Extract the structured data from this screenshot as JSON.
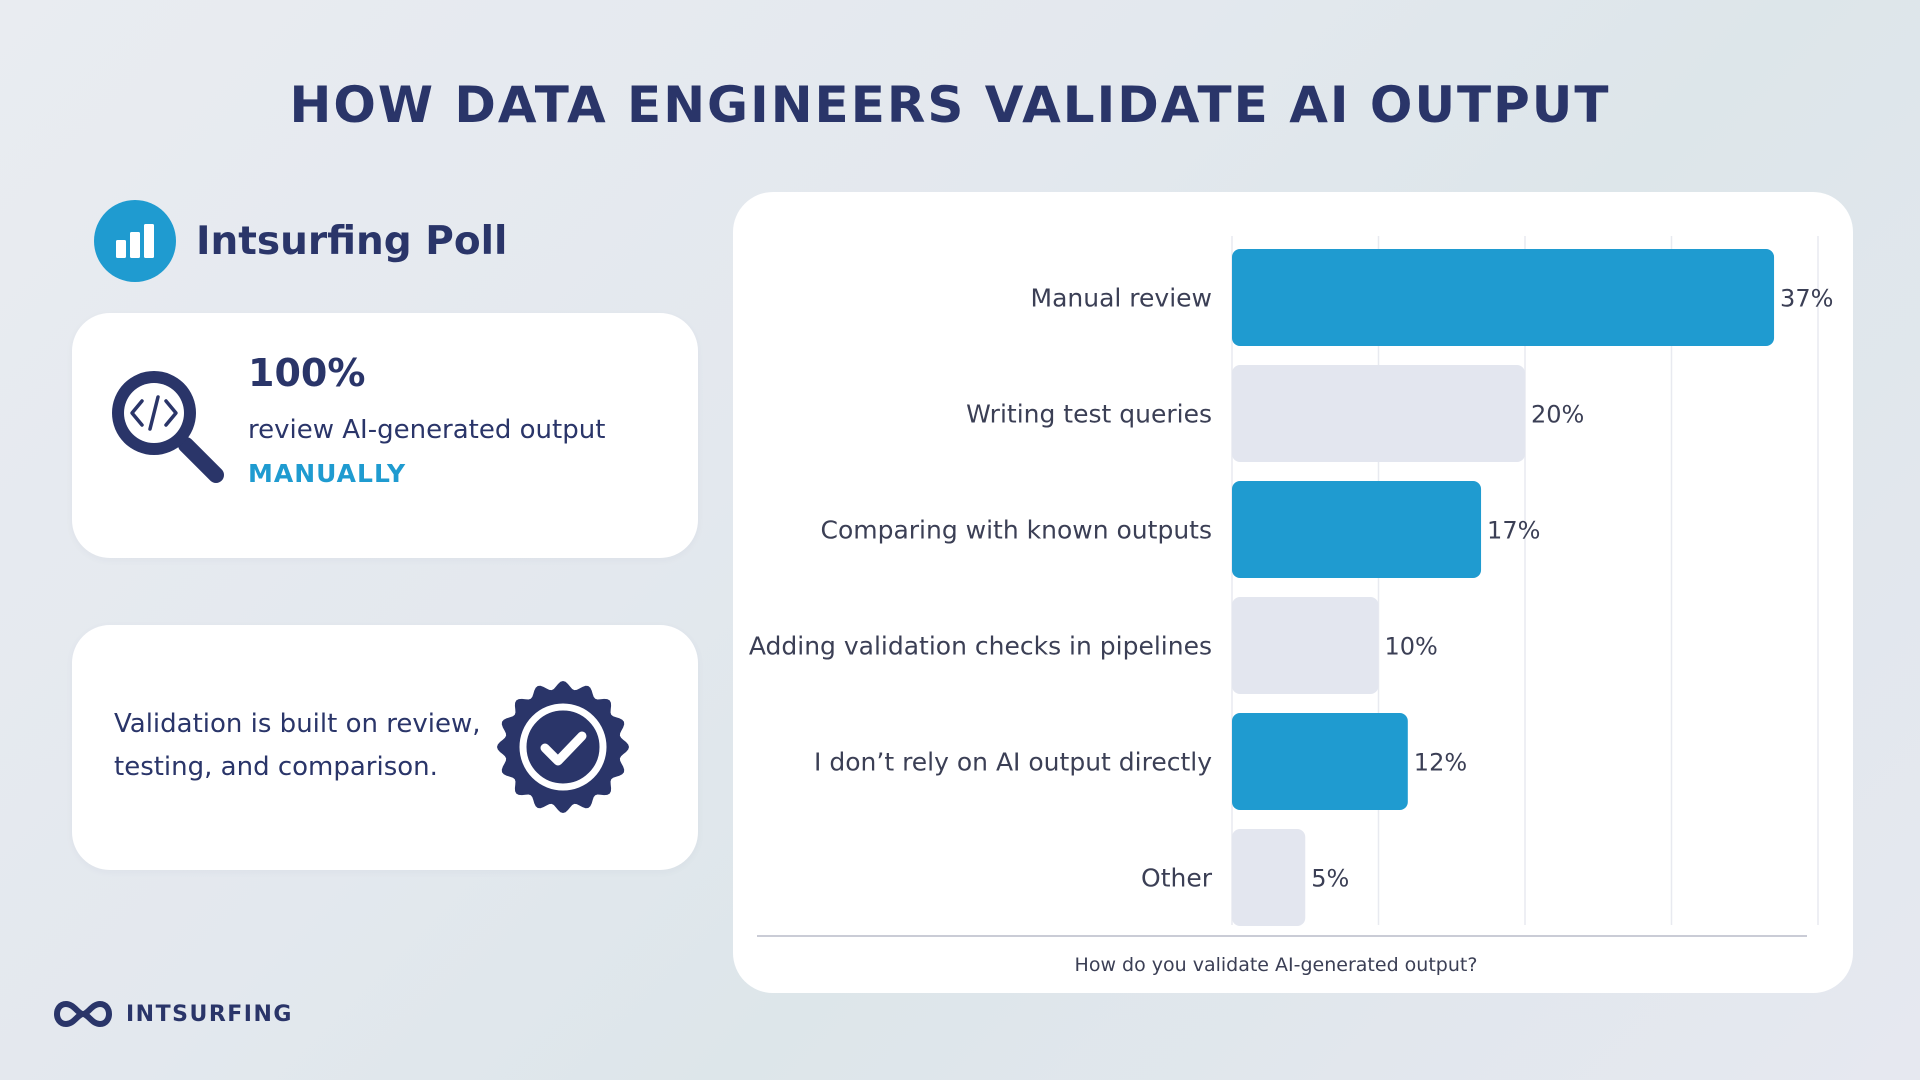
{
  "title": "HOW DATA ENGINEERS VALIDATE AI OUTPUT",
  "poll": {
    "label": "Intsurfing Poll",
    "icon": "bar-chart-icon"
  },
  "stat_card": {
    "value": "100%",
    "description": "review AI-generated output",
    "emphasis": "MANUALLY",
    "icon": "magnifier-code-icon"
  },
  "note_card": {
    "text": "Validation is built on review, testing, and comparison.",
    "icon": "verified-badge-icon"
  },
  "logo": {
    "text": "INTSURFING",
    "icon": "infinity-logo-icon"
  },
  "colors": {
    "accent": "#1f9bd0",
    "navy": "#2a3569",
    "bar_highlight": "#1f9bd0",
    "bar_muted": "#e3e6ef"
  },
  "chart_data": {
    "type": "bar",
    "orientation": "horizontal",
    "categories": [
      "Manual review",
      "Writing test queries",
      "Comparing with known outputs",
      "Adding validation checks in pipelines",
      "I don’t rely on AI output directly",
      "Other"
    ],
    "values": [
      37,
      20,
      17,
      10,
      12,
      5
    ],
    "value_labels": [
      "37%",
      "20%",
      "17%",
      "10%",
      "12%",
      "5%"
    ],
    "bar_colors": [
      "#1f9bd0",
      "#e3e6ef",
      "#1f9bd0",
      "#e3e6ef",
      "#1f9bd0",
      "#e3e6ef"
    ],
    "xlabel": "How do you validate AI-generated output?",
    "xlim": [
      0,
      40
    ],
    "grid": true
  }
}
